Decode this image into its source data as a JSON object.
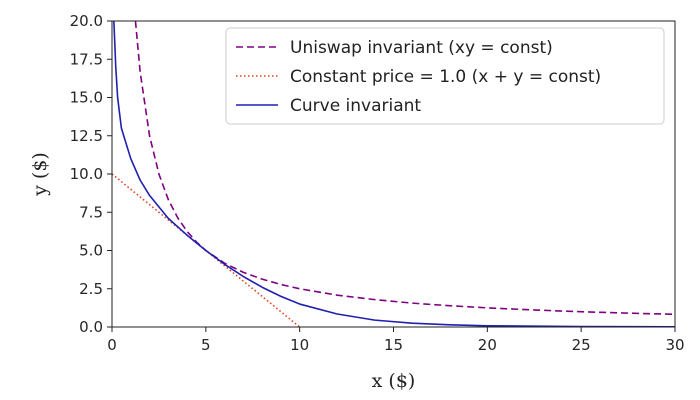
{
  "chart_data": {
    "type": "line",
    "title": "",
    "xlabel": "x ($)",
    "ylabel": "y ($)",
    "xlim": [
      0,
      30
    ],
    "ylim": [
      0,
      20
    ],
    "xticks": [
      "0",
      "5",
      "10",
      "15",
      "20",
      "25",
      "30"
    ],
    "yticks": [
      "0.0",
      "2.5",
      "5.0",
      "7.5",
      "10.0",
      "12.5",
      "15.0",
      "17.5",
      "20.0"
    ],
    "grid": false,
    "legend_position": "top-right",
    "series": [
      {
        "name": "Uniswap invariant (xy = const)",
        "color": "#800080",
        "style": "dashed",
        "x": [
          1.25,
          1.5,
          2,
          2.5,
          3,
          3.5,
          4,
          4.5,
          5,
          6,
          7,
          8,
          9,
          10,
          12,
          14,
          16,
          18,
          20,
          22,
          24,
          26,
          28,
          30
        ],
        "y": [
          20.0,
          16.67,
          12.5,
          10.0,
          8.33,
          7.14,
          6.25,
          5.56,
          5.0,
          4.17,
          3.57,
          3.13,
          2.78,
          2.5,
          2.08,
          1.79,
          1.56,
          1.39,
          1.25,
          1.14,
          1.04,
          0.96,
          0.89,
          0.83
        ]
      },
      {
        "name": "Constant price = 1.0 (x + y = const)",
        "color": "#e0401a",
        "style": "dotted",
        "x": [
          0,
          10
        ],
        "y": [
          10,
          0
        ]
      },
      {
        "name": "Curve invariant",
        "color": "#2020b0",
        "style": "solid",
        "x": [
          0.1,
          0.2,
          0.3,
          0.5,
          0.8,
          1.0,
          1.5,
          2.0,
          3.0,
          4.0,
          5.0,
          6.0,
          7.0,
          8.0,
          9.0,
          10.0,
          12.0,
          14.0,
          16.0,
          18.0,
          20.0,
          25.0,
          30.0
        ],
        "y": [
          20.0,
          17.0,
          15.0,
          13.0,
          11.8,
          11.0,
          9.6,
          8.6,
          7.1,
          6.0,
          5.0,
          4.1,
          3.3,
          2.6,
          2.0,
          1.5,
          0.85,
          0.45,
          0.25,
          0.14,
          0.08,
          0.03,
          0.01
        ]
      }
    ]
  }
}
